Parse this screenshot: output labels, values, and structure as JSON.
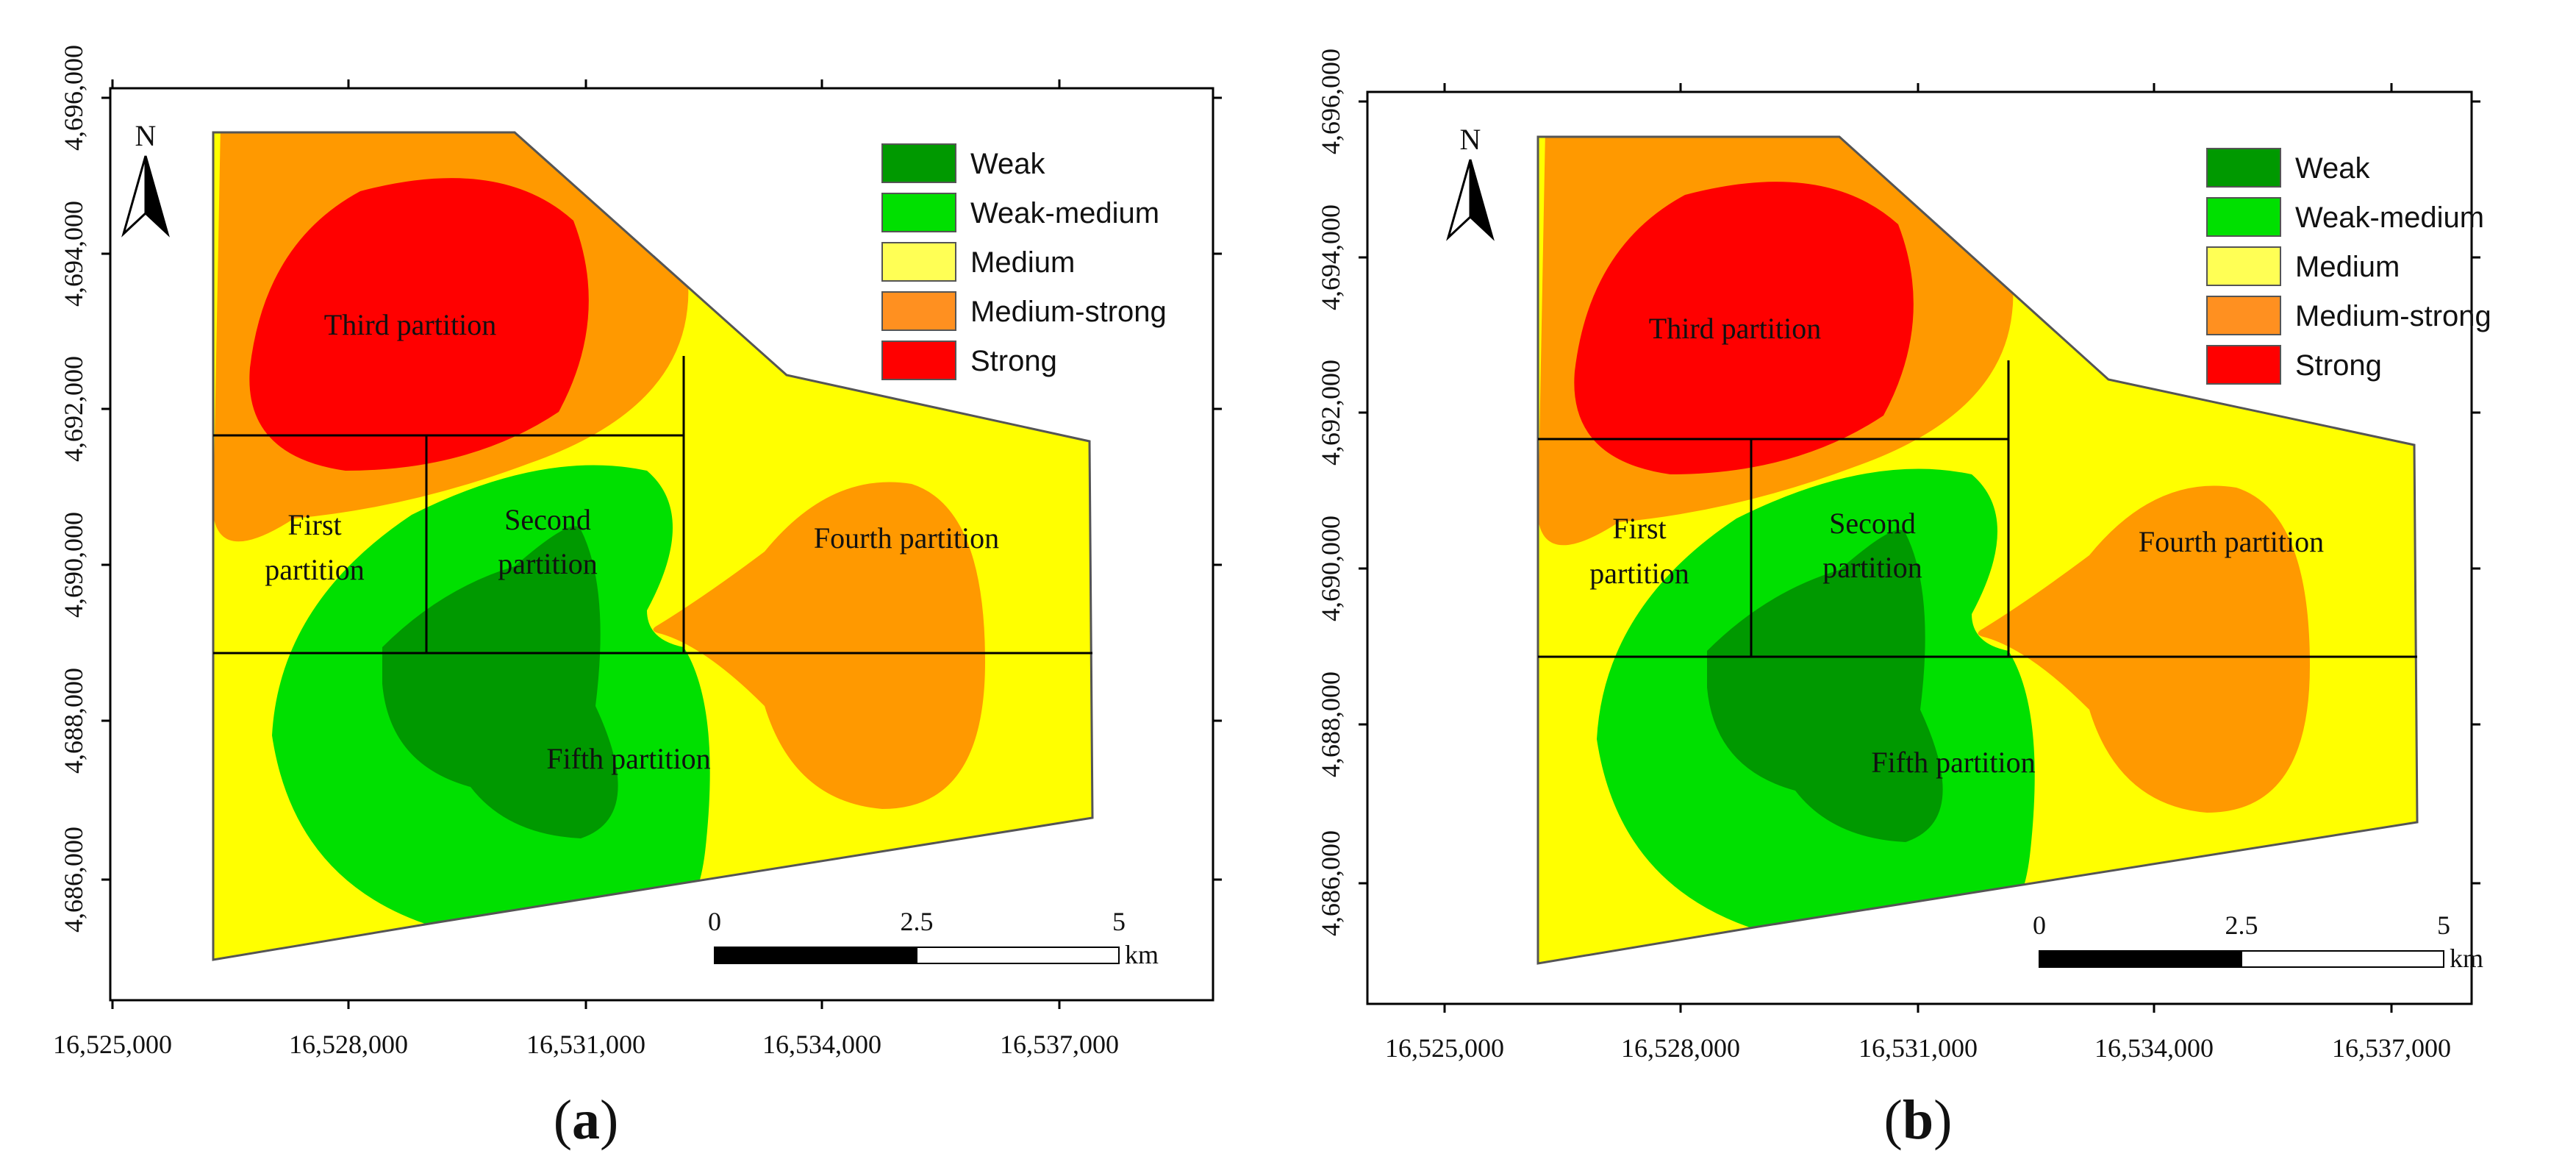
{
  "panels": [
    {
      "id": "a",
      "open": "(",
      "letter": "a",
      "close": ")"
    },
    {
      "id": "b",
      "open": "(",
      "letter": "b",
      "close": ")"
    }
  ],
  "north_label": "N",
  "y_ticks": [
    "4,696,000",
    "4,694,000",
    "4,692,000",
    "4,690,000",
    "4,688,000",
    "4,686,000"
  ],
  "x_ticks": [
    "16,525,000",
    "16,528,000",
    "16,531,000",
    "16,534,000",
    "16,537,000"
  ],
  "legend": [
    {
      "label": "Weak",
      "color": "#009900"
    },
    {
      "label": "Weak-medium",
      "color": "#00e000"
    },
    {
      "label": "Medium",
      "color": "#ffff55"
    },
    {
      "label": "Medium-strong",
      "color": "#ff9020"
    },
    {
      "label": "Strong",
      "color": "#ff0000"
    }
  ],
  "partitions": {
    "third": "Third partition",
    "first_line1": "First",
    "first_line2": "partition",
    "second_line1": "Second",
    "second_line2": "partition",
    "fourth": "Fourth partition",
    "fifth": "Fifth partition"
  },
  "scale_bar": {
    "labels": [
      "0",
      "2.5",
      "5"
    ],
    "unit": "km"
  },
  "colors": {
    "weak": "#009900",
    "weak_medium": "#00e000",
    "medium": "#ffff00",
    "medium_strong": "#ff9900",
    "strong": "#ff0000",
    "boundary": "#555555",
    "line": "#000000"
  }
}
